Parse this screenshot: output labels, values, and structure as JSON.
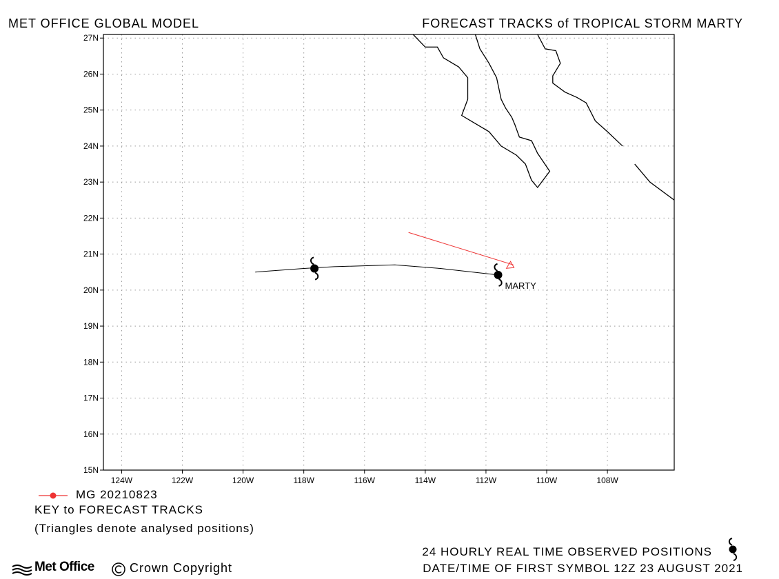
{
  "header": {
    "left": "MET OFFICE GLOBAL MODEL",
    "right": "FORECAST TRACKS of TROPICAL STORM MARTY"
  },
  "map": {
    "lon_range": [
      -124.6,
      -105.8
    ],
    "lat_range": [
      15,
      27.1
    ],
    "lon_ticks": [
      -124,
      -122,
      -120,
      -118,
      -116,
      -114,
      -112,
      -110,
      -108
    ],
    "lon_tick_labels": [
      "124W",
      "122W",
      "120W",
      "118W",
      "116W",
      "114W",
      "112W",
      "110W",
      "108W"
    ],
    "lat_ticks": [
      15,
      16,
      17,
      18,
      19,
      20,
      21,
      22,
      23,
      24,
      25,
      26,
      27
    ],
    "lat_tick_labels": [
      "15N",
      "16N",
      "17N",
      "18N",
      "19N",
      "20N",
      "21N",
      "22N",
      "23N",
      "24N",
      "25N",
      "26N",
      "27N"
    ],
    "grid": true,
    "coastlines": [
      [
        [
          -114.4,
          27.1
        ],
        [
          -114.0,
          26.75
        ],
        [
          -113.6,
          26.75
        ],
        [
          -113.4,
          26.45
        ],
        [
          -112.9,
          26.2
        ],
        [
          -112.6,
          25.9
        ],
        [
          -112.6,
          25.3
        ],
        [
          -112.8,
          24.85
        ],
        [
          -112.3,
          24.6
        ],
        [
          -111.9,
          24.4
        ],
        [
          -111.5,
          24.0
        ],
        [
          -111.0,
          23.75
        ],
        [
          -110.7,
          23.5
        ],
        [
          -110.5,
          23.05
        ],
        [
          -110.3,
          22.85
        ],
        [
          -109.9,
          23.3
        ],
        [
          -110.3,
          23.8
        ],
        [
          -110.5,
          24.15
        ],
        [
          -110.9,
          24.25
        ],
        [
          -111.05,
          24.6
        ],
        [
          -111.15,
          24.8
        ],
        [
          -111.35,
          25.05
        ],
        [
          -111.5,
          25.3
        ],
        [
          -111.65,
          25.9
        ],
        [
          -111.9,
          26.3
        ],
        [
          -112.2,
          26.7
        ],
        [
          -112.35,
          27.1
        ]
      ],
      [
        [
          -110.3,
          27.1
        ],
        [
          -110.05,
          26.7
        ],
        [
          -109.7,
          26.65
        ],
        [
          -109.55,
          26.3
        ],
        [
          -109.8,
          25.95
        ],
        [
          -109.8,
          25.75
        ],
        [
          -109.4,
          25.5
        ],
        [
          -109.0,
          25.35
        ],
        [
          -108.7,
          25.2
        ],
        [
          -108.4,
          24.7
        ],
        [
          -108.0,
          24.4
        ],
        [
          -107.5,
          24.0
        ]
      ],
      [
        [
          -107.1,
          23.5
        ],
        [
          -106.6,
          23.0
        ],
        [
          -105.8,
          22.5
        ]
      ]
    ]
  },
  "forecast_track": {
    "name": "MG 20210823",
    "color": "#ee3333",
    "points": [
      [
        -114.55,
        21.6
      ],
      [
        -111.1,
        20.7
      ]
    ],
    "end_symbol": "triangle"
  },
  "observed_track": {
    "storm_label": "MARTY",
    "color": "#000000",
    "points": [
      [
        -119.6,
        20.5
      ],
      [
        -118.0,
        20.6
      ],
      [
        -117.0,
        20.65
      ],
      [
        -115.0,
        20.7
      ],
      [
        -113.5,
        20.6
      ],
      [
        -111.6,
        20.42
      ]
    ],
    "symbols": [
      [
        -117.65,
        20.6
      ],
      [
        -111.6,
        20.42
      ]
    ],
    "symbol_icon": "tropical-storm-icon"
  },
  "legend": {
    "entry_label": "MG 20210823",
    "entry_color": "#ee3333",
    "key_title": "KEY to FORECAST TRACKS",
    "note": "(Triangles denote analysed positions)"
  },
  "footer": {
    "observed_label": "24 HOURLY REAL TIME OBSERVED POSITIONS",
    "datetime_label": "DATE/TIME OF FIRST SYMBOL 12Z 23 AUGUST 2021",
    "brand": "Met Office",
    "copyright": "Crown Copyright"
  }
}
